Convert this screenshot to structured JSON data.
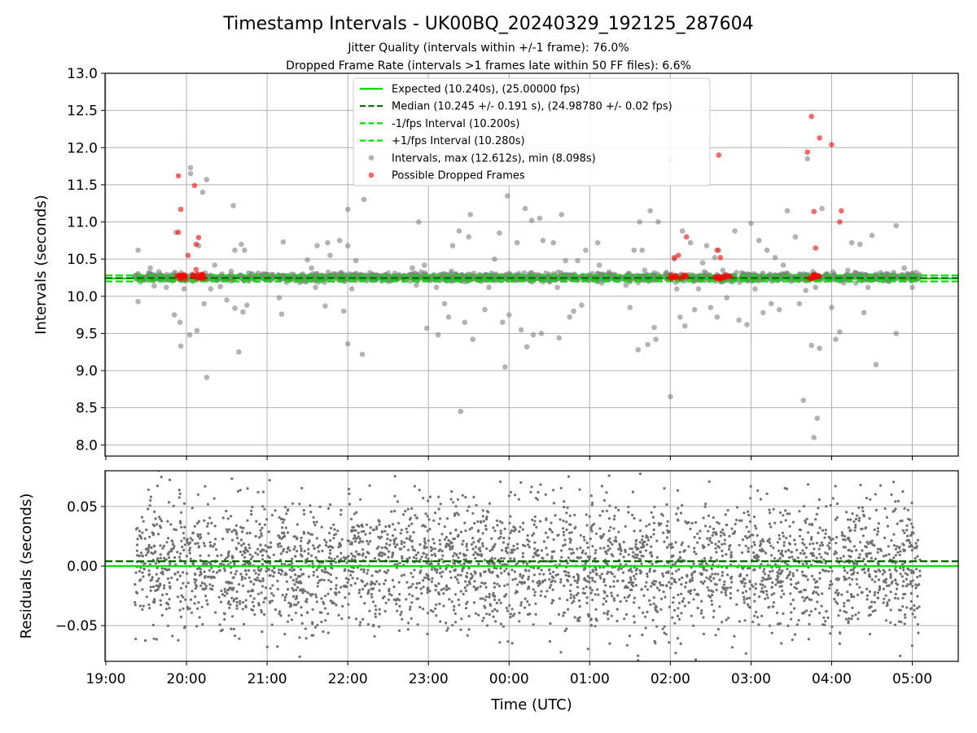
{
  "chart_data": {
    "type": "scatter",
    "title": "Timestamp Intervals - UK00BQ_20240329_192125_287604",
    "subtitle_lines": [
      "Jitter Quality (intervals within +/-1 frame): 76.0%",
      "Dropped Frame Rate (intervals >1 frames late within 50 FF files): 6.6%"
    ],
    "xlabel": "Time (UTC)",
    "x_tick_labels": [
      "19:00",
      "20:00",
      "21:00",
      "22:00",
      "23:00",
      "00:00",
      "01:00",
      "02:00",
      "03:00",
      "04:00",
      "05:00"
    ],
    "x_range_hours": [
      18.99,
      29.57
    ],
    "x_data_range_hours": [
      19.36,
      29.1
    ],
    "grid": true,
    "panels": [
      {
        "name": "intervals",
        "ylabel": "Intervals (seconds)",
        "ylim": [
          7.85,
          13.0
        ],
        "y_ticks": [
          "8.0",
          "8.5",
          "9.0",
          "9.5",
          "10.0",
          "10.5",
          "11.0",
          "11.5",
          "12.0",
          "12.5",
          "13.0"
        ],
        "y_tick_values": [
          8.0,
          8.5,
          9.0,
          9.5,
          10.0,
          10.5,
          11.0,
          11.5,
          12.0,
          12.5,
          13.0
        ],
        "legend_position": "upper-center",
        "legend": [
          {
            "label": "Expected (10.240s), (25.00000 fps)",
            "style": "solid-line",
            "color": "#00e000"
          },
          {
            "label": "Median (10.245 +/- 0.191 s), (24.98780 +/- 0.02 fps)",
            "style": "dashed-line",
            "color": "#006400"
          },
          {
            "label": "-1/fps Interval (10.200s)",
            "style": "dashed-line",
            "color": "#00e000"
          },
          {
            "label": "+1/fps Interval (10.280s)",
            "style": "dashed-line",
            "color": "#00e000"
          },
          {
            "label": "Intervals, max (12.612s), min (8.098s)",
            "style": "marker",
            "color": "#808080"
          },
          {
            "label": "Possible Dropped Frames",
            "style": "marker",
            "color": "#ff0000"
          }
        ],
        "hlines": [
          {
            "y": 10.24,
            "style": "solid",
            "color": "#00e000"
          },
          {
            "y": 10.245,
            "style": "dashed",
            "color": "#006400"
          },
          {
            "y": 10.2,
            "style": "dashed",
            "color": "#00e000"
          },
          {
            "y": 10.28,
            "style": "dashed",
            "color": "#00e000"
          }
        ],
        "band_y_range": [
          10.2,
          10.3
        ],
        "outliers": [
          [
            19.4,
            10.62
          ],
          [
            19.4,
            9.93
          ],
          [
            19.55,
            10.38
          ],
          [
            19.6,
            10.14
          ],
          [
            19.75,
            10.12
          ],
          [
            19.85,
            9.75
          ],
          [
            19.87,
            10.86
          ],
          [
            19.92,
            9.65
          ],
          [
            19.93,
            9.33
          ],
          [
            19.97,
            10.1
          ],
          [
            20.05,
            11.73
          ],
          [
            20.05,
            11.65
          ],
          [
            20.04,
            9.48
          ],
          [
            20.08,
            10.2
          ],
          [
            20.13,
            9.54
          ],
          [
            20.15,
            10.68
          ],
          [
            20.2,
            11.4
          ],
          [
            20.22,
            9.9
          ],
          [
            20.25,
            11.57
          ],
          [
            20.25,
            8.91
          ],
          [
            20.3,
            10.1
          ],
          [
            20.35,
            10.42
          ],
          [
            20.42,
            10.13
          ],
          [
            20.5,
            9.95
          ],
          [
            20.58,
            11.22
          ],
          [
            20.6,
            10.62
          ],
          [
            20.6,
            9.84
          ],
          [
            20.68,
            10.7
          ],
          [
            20.7,
            9.79
          ],
          [
            20.65,
            9.25
          ],
          [
            20.72,
            10.62
          ],
          [
            20.75,
            9.88
          ],
          [
            21.15,
            9.98
          ],
          [
            21.2,
            10.73
          ],
          [
            21.18,
            9.76
          ],
          [
            21.5,
            10.49
          ],
          [
            21.55,
            10.38
          ],
          [
            21.6,
            10.12
          ],
          [
            21.62,
            10.68
          ],
          [
            21.7,
            10.23
          ],
          [
            21.72,
            9.87
          ],
          [
            21.75,
            10.72
          ],
          [
            21.78,
            10.55
          ],
          [
            21.85,
            10.3
          ],
          [
            21.9,
            10.75
          ],
          [
            21.95,
            9.8
          ],
          [
            22.0,
            11.17
          ],
          [
            22.0,
            10.68
          ],
          [
            22.05,
            10.1
          ],
          [
            22.0,
            9.36
          ],
          [
            22.1,
            10.48
          ],
          [
            22.18,
            9.22
          ],
          [
            22.2,
            11.3
          ],
          [
            22.5,
            10.2
          ],
          [
            22.8,
            10.38
          ],
          [
            22.85,
            10.15
          ],
          [
            22.88,
            11.0
          ],
          [
            22.95,
            10.42
          ],
          [
            22.98,
            9.57
          ],
          [
            23.1,
            10.12
          ],
          [
            23.12,
            9.48
          ],
          [
            23.18,
            10.3
          ],
          [
            23.2,
            9.9
          ],
          [
            23.25,
            9.72
          ],
          [
            23.3,
            10.68
          ],
          [
            23.38,
            10.88
          ],
          [
            23.4,
            8.45
          ],
          [
            23.45,
            9.65
          ],
          [
            23.5,
            10.8
          ],
          [
            23.52,
            11.1
          ],
          [
            23.55,
            9.42
          ],
          [
            23.65,
            10.2
          ],
          [
            23.7,
            9.82
          ],
          [
            23.75,
            10.12
          ],
          [
            23.82,
            10.5
          ],
          [
            23.88,
            10.85
          ],
          [
            23.92,
            9.65
          ],
          [
            23.98,
            11.35
          ],
          [
            23.95,
            9.05
          ],
          [
            24.0,
            9.75
          ],
          [
            24.1,
            10.72
          ],
          [
            24.15,
            9.55
          ],
          [
            24.2,
            11.18
          ],
          [
            24.22,
            9.32
          ],
          [
            24.28,
            11.02
          ],
          [
            24.3,
            9.48
          ],
          [
            24.38,
            11.05
          ],
          [
            24.4,
            9.5
          ],
          [
            24.42,
            10.75
          ],
          [
            24.5,
            10.2
          ],
          [
            24.55,
            10.72
          ],
          [
            24.6,
            10.12
          ],
          [
            24.62,
            9.44
          ],
          [
            24.65,
            11.1
          ],
          [
            24.7,
            10.48
          ],
          [
            24.75,
            9.72
          ],
          [
            24.8,
            9.8
          ],
          [
            24.85,
            10.48
          ],
          [
            24.9,
            9.88
          ],
          [
            24.95,
            10.62
          ],
          [
            25.1,
            10.72
          ],
          [
            25.12,
            10.42
          ],
          [
            25.15,
            10.18
          ],
          [
            25.45,
            10.15
          ],
          [
            25.5,
            9.85
          ],
          [
            25.55,
            10.62
          ],
          [
            25.6,
            9.28
          ],
          [
            25.62,
            11.0
          ],
          [
            25.65,
            10.62
          ],
          [
            25.68,
            10.35
          ],
          [
            25.72,
            9.35
          ],
          [
            25.75,
            11.15
          ],
          [
            25.8,
            9.58
          ],
          [
            25.82,
            9.42
          ],
          [
            25.85,
            11.0
          ],
          [
            25.95,
            10.32
          ],
          [
            26.0,
            11.83
          ],
          [
            26.0,
            8.65
          ],
          [
            26.05,
            10.5
          ],
          [
            26.08,
            10.1
          ],
          [
            26.12,
            9.72
          ],
          [
            26.15,
            10.88
          ],
          [
            26.18,
            9.6
          ],
          [
            26.25,
            10.72
          ],
          [
            26.3,
            9.82
          ],
          [
            26.35,
            10.1
          ],
          [
            26.4,
            10.45
          ],
          [
            26.45,
            10.68
          ],
          [
            26.5,
            9.85
          ],
          [
            26.55,
            10.52
          ],
          [
            26.58,
            9.72
          ],
          [
            26.6,
            10.62
          ],
          [
            26.65,
            10.35
          ],
          [
            26.7,
            9.98
          ],
          [
            26.8,
            10.88
          ],
          [
            26.82,
            10.32
          ],
          [
            26.85,
            9.68
          ],
          [
            26.95,
            9.62
          ],
          [
            27.0,
            10.98
          ],
          [
            27.05,
            10.1
          ],
          [
            27.1,
            10.75
          ],
          [
            27.15,
            9.78
          ],
          [
            27.2,
            10.62
          ],
          [
            27.25,
            9.9
          ],
          [
            27.3,
            10.52
          ],
          [
            27.35,
            9.82
          ],
          [
            27.4,
            10.42
          ],
          [
            27.45,
            11.15
          ],
          [
            27.5,
            10.2
          ],
          [
            27.55,
            10.8
          ],
          [
            27.6,
            9.9
          ],
          [
            27.65,
            8.6
          ],
          [
            27.68,
            10.08
          ],
          [
            27.7,
            11.85
          ],
          [
            27.75,
            9.34
          ],
          [
            27.78,
            8.1
          ],
          [
            27.8,
            10.12
          ],
          [
            27.82,
            8.36
          ],
          [
            27.85,
            9.3
          ],
          [
            27.88,
            11.18
          ],
          [
            27.95,
            10.3
          ],
          [
            28.0,
            9.85
          ],
          [
            28.05,
            9.42
          ],
          [
            28.1,
            9.52
          ],
          [
            28.15,
            10.18
          ],
          [
            28.2,
            10.35
          ],
          [
            28.25,
            10.72
          ],
          [
            28.3,
            10.18
          ],
          [
            28.35,
            10.7
          ],
          [
            28.4,
            9.78
          ],
          [
            28.45,
            10.12
          ],
          [
            28.5,
            10.82
          ],
          [
            28.55,
            9.08
          ],
          [
            28.8,
            10.95
          ],
          [
            28.8,
            9.5
          ],
          [
            28.9,
            10.38
          ],
          [
            29.0,
            10.12
          ],
          [
            29.05,
            10.32
          ]
        ],
        "dropped_frames": [
          [
            19.9,
            11.62
          ],
          [
            19.93,
            11.17
          ],
          [
            19.9,
            10.86
          ],
          [
            20.02,
            10.55
          ],
          [
            20.1,
            11.49
          ],
          [
            20.12,
            10.7
          ],
          [
            20.15,
            10.79
          ],
          [
            20.12,
            10.36
          ],
          [
            26.05,
            10.52
          ],
          [
            26.1,
            10.55
          ],
          [
            26.2,
            10.8
          ],
          [
            26.6,
            11.9
          ],
          [
            26.58,
            10.62
          ],
          [
            26.62,
            10.52
          ],
          [
            27.75,
            12.42
          ],
          [
            27.7,
            11.94
          ],
          [
            27.85,
            12.13
          ],
          [
            28.0,
            12.04
          ],
          [
            27.78,
            11.14
          ],
          [
            28.12,
            11.15
          ],
          [
            28.1,
            11.0
          ],
          [
            27.8,
            10.65
          ]
        ],
        "dropped_clusters": [
          {
            "x_range": [
              19.88,
              20.0
            ],
            "y": 10.26
          },
          {
            "x_range": [
              20.07,
              20.25
            ],
            "y": 10.27
          },
          {
            "x_range": [
              26.0,
              26.2
            ],
            "y": 10.26
          },
          {
            "x_range": [
              26.55,
              26.75
            ],
            "y": 10.26
          },
          {
            "x_range": [
              27.7,
              27.85
            ],
            "y": 10.26
          }
        ]
      },
      {
        "name": "residuals",
        "ylabel": "Residuals (seconds)",
        "ylim": [
          -0.08,
          0.08
        ],
        "y_ticks": [
          "−0.05",
          "0.00",
          "0.05"
        ],
        "y_tick_values": [
          -0.05,
          0.0,
          0.05
        ],
        "hlines": [
          {
            "y": 0.0,
            "style": "solid",
            "color": "#00e000"
          },
          {
            "y": 0.004,
            "style": "dashed",
            "color": "#006400"
          }
        ],
        "scatter_point_count": 3400,
        "residual_std": 0.027,
        "scatter_color": "#707070"
      }
    ]
  }
}
